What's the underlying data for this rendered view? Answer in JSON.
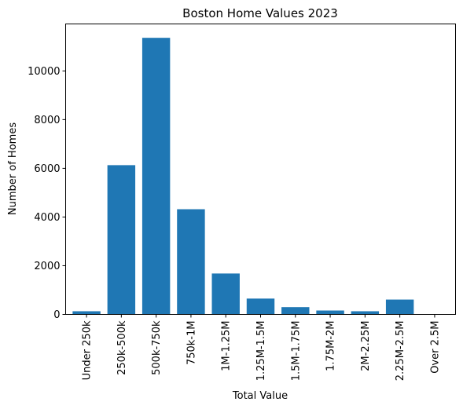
{
  "chart_data": {
    "type": "bar",
    "title": "Boston Home Values 2023",
    "xlabel": "Total Value",
    "ylabel": "Number of Homes",
    "categories": [
      "Under 250k",
      "250k-500k",
      "500k-750k",
      "750k-1M",
      "1M-1.25M",
      "1.25M-1.5M",
      "1.5M-1.75M",
      "1.75M-2M",
      "2M-2.25M",
      "2.25M-2.5M",
      "Over 2.5M"
    ],
    "values": [
      130,
      6130,
      11360,
      4320,
      1680,
      650,
      300,
      160,
      130,
      610,
      0
    ],
    "ylim": [
      0,
      11930
    ],
    "yticks": [
      0,
      2000,
      4000,
      6000,
      8000,
      10000
    ],
    "grid": false,
    "bar_color": "#1f77b4"
  }
}
